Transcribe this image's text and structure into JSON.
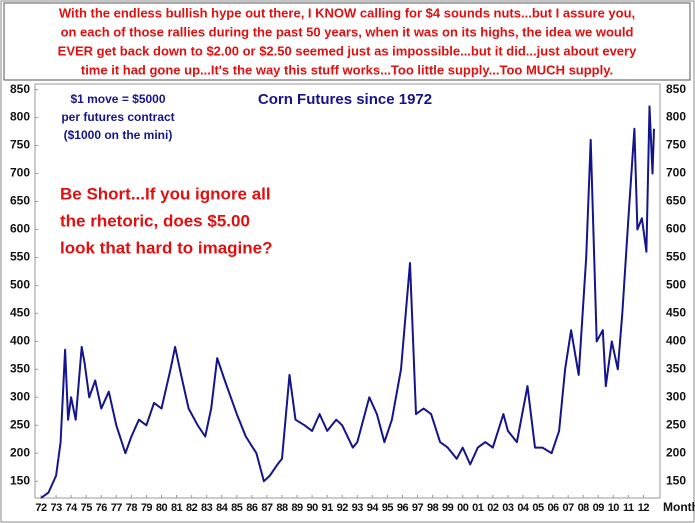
{
  "chart_data": {
    "type": "line",
    "header_lines": [
      "With the endless bullish hype out there, I KNOW calling for $4 sounds nuts...but I assure you,",
      "on each of those rallies during the past 50 years, when it was on its highs, the idea we would",
      "EVER get back down to $2.00 or $2.50 seemed just as impossible...but it did...just about every",
      "time it had gone up...It's the way this stuff works...Too little supply...Too MUCH supply."
    ],
    "title": "Corn Futures since 1972",
    "contract_note": [
      "$1 move = $5000",
      "per futures contract",
      "($1000 on the mini)"
    ],
    "comment_lines": [
      "Be Short...If you ignore all",
      "the rhetoric, does $5.00",
      "look that hard to imagine?"
    ],
    "frequency_label": "Monthly",
    "color": "#14148c",
    "x": [
      1972.0,
      1972.5,
      1973.0,
      1973.3,
      1973.6,
      1973.8,
      1974.0,
      1974.3,
      1974.7,
      1974.9,
      1975.2,
      1975.6,
      1976.0,
      1976.5,
      1977.0,
      1977.6,
      1978.0,
      1978.5,
      1979.0,
      1979.5,
      1980.0,
      1980.6,
      1980.9,
      1981.3,
      1981.8,
      1982.4,
      1982.9,
      1983.3,
      1983.7,
      1984.2,
      1984.6,
      1985.0,
      1985.6,
      1986.3,
      1986.8,
      1987.2,
      1987.7,
      1988.0,
      1988.5,
      1988.9,
      1989.5,
      1990.0,
      1990.5,
      1991.0,
      1991.6,
      1992.0,
      1992.7,
      1993.0,
      1993.8,
      1994.3,
      1994.8,
      1995.3,
      1995.9,
      1996.5,
      1996.9,
      1997.4,
      1997.9,
      1998.5,
      1999.0,
      1999.6,
      2000.0,
      2000.5,
      2001.0,
      2001.5,
      2002.0,
      2002.7,
      2003.0,
      2003.6,
      2004.3,
      2004.8,
      2005.3,
      2005.9,
      2006.4,
      2006.8,
      2007.2,
      2007.7,
      2008.2,
      2008.5,
      2008.9,
      2009.3,
      2009.5,
      2009.9,
      2010.3,
      2010.6,
      2011.0,
      2011.4,
      2011.6,
      2011.9,
      2012.2,
      2012.4,
      2012.6,
      2012.7
    ],
    "values": [
      120,
      130,
      160,
      220,
      385,
      260,
      300,
      260,
      390,
      360,
      300,
      330,
      280,
      310,
      250,
      200,
      230,
      260,
      250,
      290,
      280,
      350,
      390,
      340,
      280,
      250,
      230,
      280,
      370,
      330,
      300,
      270,
      230,
      200,
      150,
      160,
      180,
      190,
      340,
      260,
      250,
      240,
      270,
      240,
      260,
      250,
      210,
      220,
      300,
      270,
      220,
      260,
      350,
      540,
      270,
      280,
      270,
      220,
      210,
      190,
      210,
      180,
      210,
      220,
      210,
      270,
      240,
      220,
      320,
      210,
      210,
      200,
      240,
      350,
      420,
      340,
      550,
      760,
      400,
      420,
      320,
      400,
      350,
      450,
      620,
      780,
      600,
      620,
      560,
      820,
      700,
      780
    ],
    "ylim": [
      120,
      860
    ],
    "yticks": [
      150,
      200,
      250,
      300,
      350,
      400,
      450,
      500,
      550,
      600,
      650,
      700,
      750,
      800,
      850
    ],
    "xlim": [
      1971.6,
      2013.1
    ],
    "xticks": [
      {
        "value": 1972,
        "label": "72"
      },
      {
        "value": 1973,
        "label": "73"
      },
      {
        "value": 1974,
        "label": "74"
      },
      {
        "value": 1975,
        "label": "75"
      },
      {
        "value": 1976,
        "label": "76"
      },
      {
        "value": 1977,
        "label": "77"
      },
      {
        "value": 1978,
        "label": "78"
      },
      {
        "value": 1979,
        "label": "79"
      },
      {
        "value": 1980,
        "label": "80"
      },
      {
        "value": 1981,
        "label": "81"
      },
      {
        "value": 1982,
        "label": "82"
      },
      {
        "value": 1983,
        "label": "83"
      },
      {
        "value": 1984,
        "label": "84"
      },
      {
        "value": 1985,
        "label": "85"
      },
      {
        "value": 1986,
        "label": "86"
      },
      {
        "value": 1987,
        "label": "87"
      },
      {
        "value": 1988,
        "label": "88"
      },
      {
        "value": 1989,
        "label": "89"
      },
      {
        "value": 1990,
        "label": "90"
      },
      {
        "value": 1991,
        "label": "91"
      },
      {
        "value": 1992,
        "label": "92"
      },
      {
        "value": 1993,
        "label": "93"
      },
      {
        "value": 1994,
        "label": "94"
      },
      {
        "value": 1995,
        "label": "95"
      },
      {
        "value": 1996,
        "label": "96"
      },
      {
        "value": 1997,
        "label": "97"
      },
      {
        "value": 1998,
        "label": "98"
      },
      {
        "value": 1999,
        "label": "99"
      },
      {
        "value": 2000,
        "label": "00"
      },
      {
        "value": 2001,
        "label": "01"
      },
      {
        "value": 2002,
        "label": "02"
      },
      {
        "value": 2003,
        "label": "03"
      },
      {
        "value": 2004,
        "label": "04"
      },
      {
        "value": 2005,
        "label": "05"
      },
      {
        "value": 2006,
        "label": "06"
      },
      {
        "value": 2007,
        "label": "07"
      },
      {
        "value": 2008,
        "label": "08"
      },
      {
        "value": 2009,
        "label": "09"
      },
      {
        "value": 2010,
        "label": "10"
      },
      {
        "value": 2011,
        "label": "11"
      },
      {
        "value": 2012,
        "label": "12"
      }
    ]
  }
}
